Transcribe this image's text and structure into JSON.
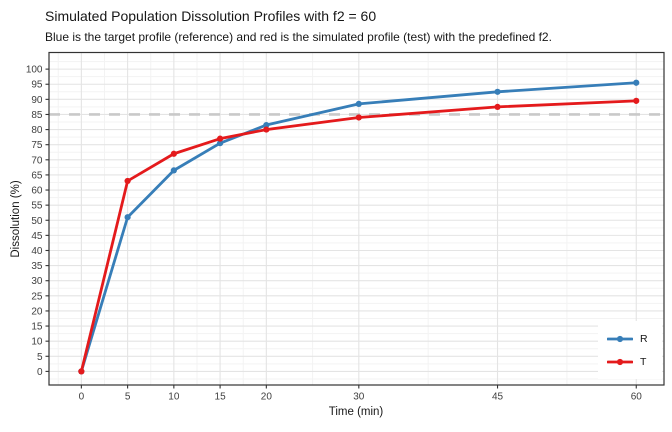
{
  "title": "Simulated Population Dissolution Profiles with f2 = 60",
  "subtitle": "Blue is the target profile (reference) and red is the simulated profile (test) with the predefined f2.",
  "chart_data": {
    "type": "line",
    "title": "Simulated Population Dissolution Profiles with f2 = 60",
    "subtitle": "Blue is the target profile (reference) and red is the simulated profile (test) with the predefined f2.",
    "xlabel": "Time (min)",
    "ylabel": "Dissolution (%)",
    "x": [
      0,
      5,
      10,
      15,
      20,
      30,
      45,
      60
    ],
    "series": [
      {
        "name": "R",
        "color": "#377eb8",
        "values": [
          0,
          51,
          66.5,
          75.5,
          81.5,
          88.5,
          92.5,
          95.5
        ]
      },
      {
        "name": "T",
        "color": "#e41a1c",
        "values": [
          0,
          63,
          72,
          77,
          80,
          84,
          87.5,
          89.5
        ]
      }
    ],
    "x_ticks": [
      0,
      5,
      10,
      15,
      20,
      30,
      45,
      60
    ],
    "y_ticks": [
      0,
      5,
      10,
      15,
      20,
      25,
      30,
      35,
      40,
      45,
      50,
      55,
      60,
      65,
      70,
      75,
      80,
      85,
      90,
      95,
      100
    ],
    "xlim": [
      -3.5,
      63
    ],
    "ylim": [
      -4.5,
      105.5
    ],
    "grid": true,
    "reference_line": {
      "y": 85,
      "style": "dashed",
      "color": "#c9c9c9"
    },
    "legend": {
      "position": "bottom-right",
      "entries": [
        "R",
        "T"
      ]
    }
  }
}
